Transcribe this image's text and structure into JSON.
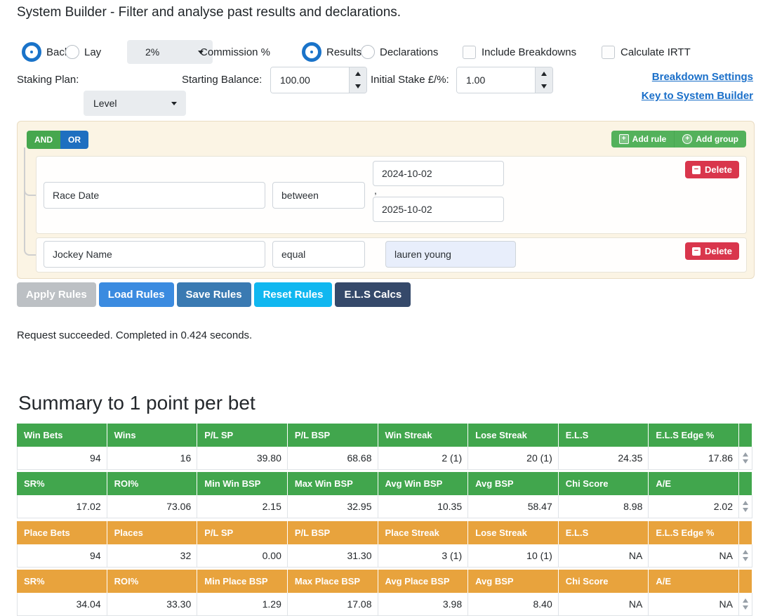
{
  "title": "System Builder - Filter and analyse past results and declarations.",
  "controls": {
    "back_label": "Back",
    "lay_label": "Lay",
    "back_selected": true,
    "lay_selected": false,
    "commission_value": "2%",
    "commission_label": "Commission %",
    "results_label": "Results",
    "declarations_label": "Declarations",
    "results_selected": true,
    "declarations_selected": false,
    "include_breakdowns_label": "Include Breakdowns",
    "include_breakdowns_checked": false,
    "calculate_irtt_label": "Calculate IRTT",
    "calculate_irtt_checked": false,
    "staking_plan_label": "Staking Plan:",
    "staking_plan_value": "Level",
    "starting_balance_label": "Starting Balance:",
    "starting_balance_value": "100.00",
    "initial_stake_label": "Initial Stake £/%:",
    "initial_stake_value": "1.00",
    "links": [
      {
        "label": "Breakdown Settings"
      },
      {
        "label": "Key to System Builder"
      }
    ]
  },
  "rule_builder": {
    "and_label": "AND",
    "or_label": "OR",
    "add_rule_label": "Add rule",
    "add_group_label": "Add group",
    "delete_label": "Delete",
    "rules": [
      {
        "field": "Race Date",
        "operator": "between",
        "value_from": "2024-10-02",
        "value_separator": ",",
        "value_to": "2025-10-02"
      },
      {
        "field": "Jockey Name",
        "operator": "equal",
        "value": "lauren young"
      }
    ]
  },
  "actions": [
    {
      "label": "Apply Rules",
      "state": "disabled"
    },
    {
      "label": "Load Rules"
    },
    {
      "label": "Save Rules"
    },
    {
      "label": "Reset Rules"
    },
    {
      "label": "E.L.S Calcs"
    }
  ],
  "status_message": "Request succeeded. Completed in 0.424 seconds.",
  "summary": {
    "heading": "Summary to 1 point per bet",
    "win_table": {
      "rows": [
        {
          "headers": [
            "Win Bets",
            "Wins",
            "P/L SP",
            "P/L BSP",
            "Win Streak",
            "Lose Streak",
            "E.L.S",
            "E.L.S Edge %"
          ],
          "values": [
            "94",
            "16",
            "39.80",
            "68.68",
            "2 (1)",
            "20 (1)",
            "24.35",
            "17.86"
          ]
        },
        {
          "headers": [
            "SR%",
            "ROI%",
            "Min Win BSP",
            "Max Win BSP",
            "Avg Win BSP",
            "Avg BSP",
            "Chi Score",
            "A/E"
          ],
          "values": [
            "17.02",
            "73.06",
            "2.15",
            "32.95",
            "10.35",
            "58.47",
            "8.98",
            "2.02"
          ]
        }
      ]
    },
    "place_table": {
      "rows": [
        {
          "headers": [
            "Place Bets",
            "Places",
            "P/L SP",
            "P/L BSP",
            "Place Streak",
            "Lose Streak",
            "E.L.S",
            "E.L.S Edge %"
          ],
          "values": [
            "94",
            "32",
            "0.00",
            "31.30",
            "3 (1)",
            "10 (1)",
            "NA",
            "NA"
          ]
        },
        {
          "headers": [
            "SR%",
            "ROI%",
            "Min Place BSP",
            "Max Place BSP",
            "Avg Place BSP",
            "Avg BSP",
            "Chi Score",
            "A/E"
          ],
          "values": [
            "34.04",
            "33.30",
            "1.29",
            "17.08",
            "3.98",
            "8.40",
            "NA",
            "NA"
          ]
        }
      ]
    }
  },
  "colors": {
    "accent_blue": "#1a73c9",
    "and_green": "#46a74e",
    "or_blue": "#1e6fc0",
    "add_button_green": "#53b15b",
    "delete_red": "#d9364c",
    "apply_gray": "#bcc0c4",
    "load_blue": "#3b8be0",
    "save_blue": "#3a7ab2",
    "reset_cyan": "#10b7f0",
    "els_navy": "#35496a",
    "win_header_green": "#41a64d",
    "place_header_orange": "#e8a33d",
    "panel_bg": "#fbf4e4",
    "link_blue": "#1a6fc9"
  }
}
